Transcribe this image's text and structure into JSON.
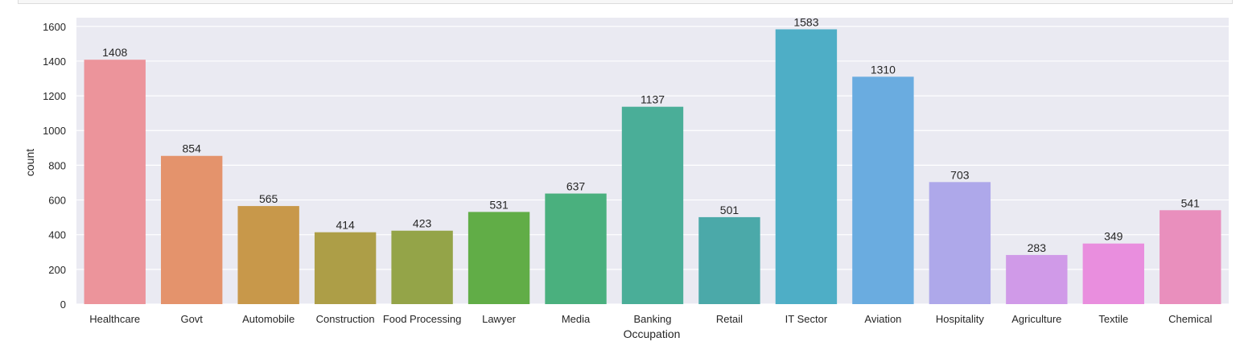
{
  "chart_data": {
    "type": "bar",
    "title": "",
    "xlabel": "Occupation",
    "ylabel": "count",
    "ylim": [
      0,
      1650
    ],
    "yticks": [
      0,
      200,
      400,
      600,
      800,
      1000,
      1200,
      1400,
      1600
    ],
    "grid": true,
    "style": "seaborn-darkgrid",
    "background": "#eaeaf2",
    "categories": [
      "Healthcare",
      "Govt",
      "Automobile",
      "Construction",
      "Food Processing",
      "Lawyer",
      "Media",
      "Banking",
      "Retail",
      "IT Sector",
      "Aviation",
      "Hospitality",
      "Agriculture",
      "Textile",
      "Chemical"
    ],
    "values": [
      1408,
      854,
      565,
      414,
      423,
      531,
      637,
      1137,
      501,
      1583,
      1310,
      703,
      283,
      349,
      541
    ],
    "colors": [
      "#ec949b",
      "#e4936c",
      "#c8984a",
      "#ad9e47",
      "#94a448",
      "#61ad47",
      "#4ab07e",
      "#4aae98",
      "#4ba9a9",
      "#4eaec6",
      "#6aace0",
      "#aea8ea",
      "#d09ae8",
      "#e98ede",
      "#e98fbd"
    ]
  }
}
